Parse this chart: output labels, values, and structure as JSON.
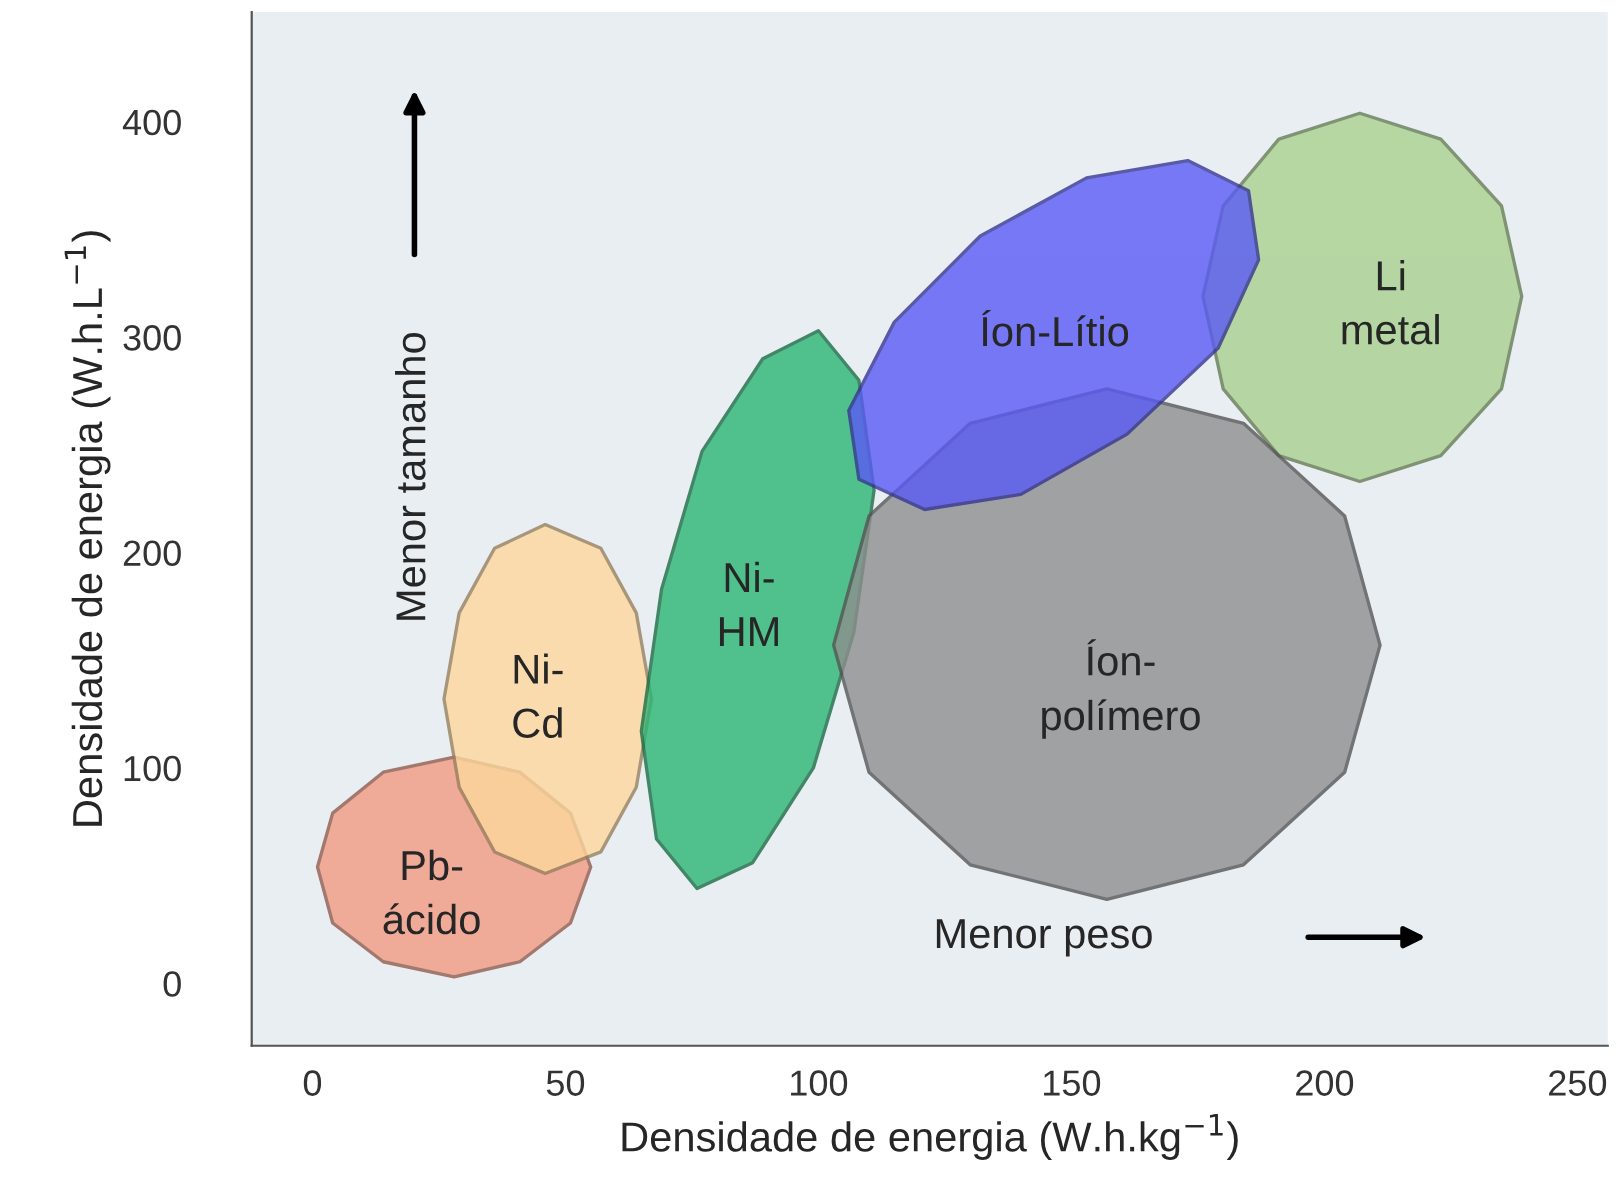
{
  "chart_data": {
    "type": "area",
    "xlabel": "Densidade de energia (W.h.kg$^{−1}$)",
    "ylabel": "Densidade de energia (W.h.L$^{−1}$)",
    "xlim": [
      -12,
      256
    ],
    "ylim": [
      -29,
      451
    ],
    "xticks": [
      0,
      50,
      100,
      150,
      200,
      250
    ],
    "yticks": [
      0,
      100,
      200,
      300,
      400
    ],
    "grid": false,
    "legend": false,
    "series": [
      {
        "name": "Pb-\nácido",
        "color": "#f29a82",
        "x": [
          55,
          51,
          41,
          28,
          14,
          4,
          1,
          4,
          14,
          28,
          41,
          51
        ],
        "values": [
          54,
          79,
          98,
          105,
          98,
          79,
          54,
          28,
          10,
          3,
          10,
          28
        ]
      },
      {
        "name": "Ni-\nCd",
        "color": "#fdd79c",
        "x": [
          67,
          64,
          57,
          46,
          36,
          29,
          26,
          29,
          36,
          46,
          57,
          64
        ],
        "values": [
          132,
          172,
          202,
          213,
          202,
          172,
          132,
          91,
          61,
          51,
          61,
          91
        ]
      },
      {
        "name": "Ni-\nHM",
        "color": "#2bb673",
        "x": [
          100,
          108,
          111,
          107,
          99,
          87,
          76,
          68,
          65,
          69,
          77,
          89
        ],
        "values": [
          303,
          280,
          229,
          163,
          100,
          56,
          44,
          67,
          117,
          183,
          247,
          290
        ]
      },
      {
        "name": "Li\nmetal",
        "color": "#a9d18e",
        "x": [
          239,
          235,
          223,
          207,
          191,
          180,
          176,
          180,
          191,
          207,
          223,
          235
        ],
        "values": [
          319,
          361,
          392,
          404,
          392,
          361,
          319,
          276,
          245,
          233,
          245,
          276
        ]
      },
      {
        "name": "Íon-\npolímero",
        "color": "#8e8e8e",
        "x": [
          211,
          204,
          184,
          157,
          130,
          110,
          103,
          110,
          130,
          157,
          184,
          204
        ],
        "values": [
          157,
          217,
          260,
          276,
          260,
          217,
          157,
          98,
          55,
          39,
          55,
          98
        ]
      },
      {
        "name": "Íon-Lítio",
        "color": "#5a5af5",
        "x": [
          185,
          187,
          179,
          161,
          140,
          121,
          108,
          106,
          115,
          132,
          153,
          173
        ],
        "values": [
          368,
          336,
          295,
          255,
          227,
          220,
          234,
          266,
          307,
          347,
          374,
          382
        ]
      }
    ],
    "annotations": [
      "Menor tamanho",
      "Menor peso"
    ]
  }
}
